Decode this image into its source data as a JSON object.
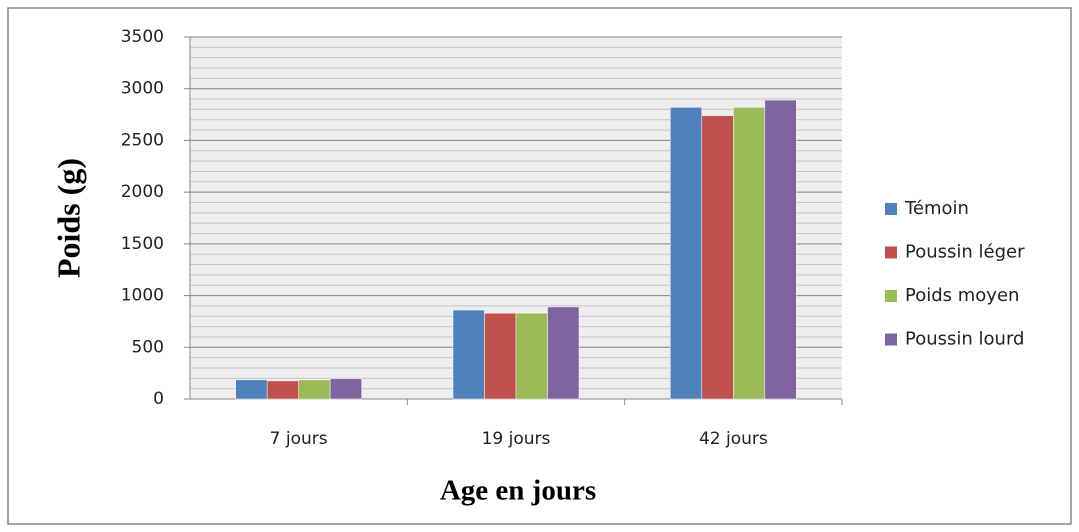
{
  "chart_data": {
    "type": "bar",
    "categories": [
      "7 jours",
      "19 jours",
      "42 jours"
    ],
    "series": [
      {
        "name": "Témoin",
        "color": "#4f81bd",
        "values": [
          185,
          860,
          2820
        ]
      },
      {
        "name": "Poussin léger",
        "color": "#c0504d",
        "values": [
          175,
          830,
          2740
        ]
      },
      {
        "name": "Poids moyen",
        "color": "#9bbb59",
        "values": [
          185,
          830,
          2820
        ]
      },
      {
        "name": "Poussin lourd",
        "color": "#8064a2",
        "values": [
          195,
          890,
          2890
        ]
      }
    ],
    "x_label": "Age en jours",
    "y_label": "Poids (g)",
    "ylim": [
      0,
      3500
    ],
    "yticks": [
      0,
      500,
      1000,
      1500,
      2000,
      2500,
      3000,
      3500
    ],
    "grid": true,
    "minor_grid_step": 100,
    "legend": "right"
  }
}
